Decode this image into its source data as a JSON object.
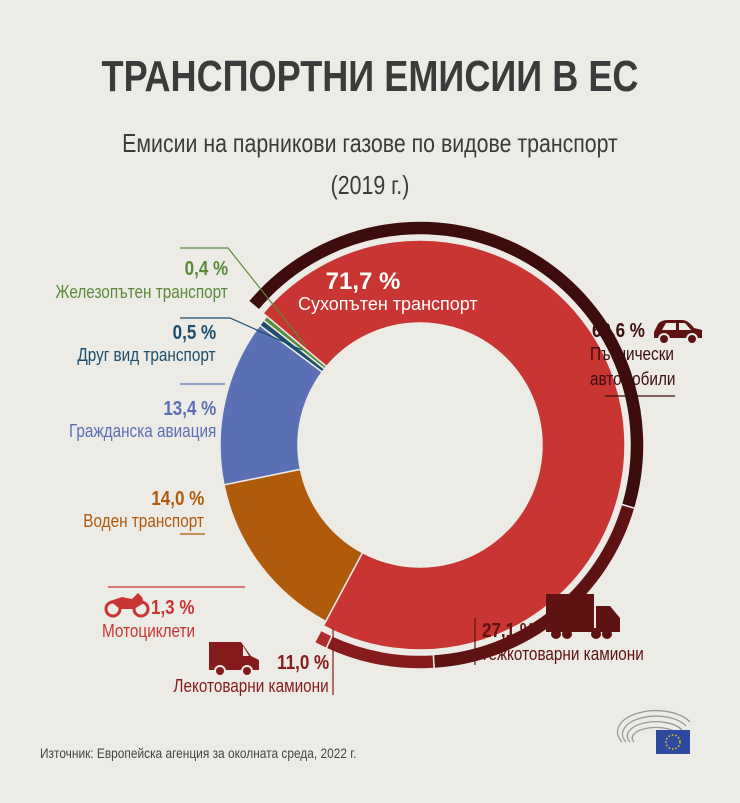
{
  "title": "ТРАНСПОРТНИ ЕМИСИИ В ЕС",
  "subtitle_line1": "Емисии на парникови газове по видове транспорт",
  "subtitle_line2": "(2019 г.)",
  "source": "Източник: Европейска агенция за околната среда, 2022 г.",
  "chart_data": {
    "type": "pie",
    "title": "Емисии на парникови газове по видове транспорт",
    "subtitle": "(2019 г.)",
    "donut": true,
    "inner_ring": [
      {
        "name": "Сухопътен транспорт",
        "value": 71.7,
        "label": "71,7 %",
        "color": "#c93533"
      },
      {
        "name": "Воден транспорт",
        "value": 14.0,
        "label": "14,0 %",
        "color": "#b05a0c"
      },
      {
        "name": "Гражданска авиация",
        "value": 13.4,
        "label": "13,4 %",
        "color": "#5b6fb5"
      },
      {
        "name": "Друг вид транспорт",
        "value": 0.5,
        "label": "0,5 %",
        "color": "#1d4e6b"
      },
      {
        "name": "Железопътен транспорт",
        "value": 0.4,
        "label": "0,4 %",
        "color": "#5a8a3a"
      }
    ],
    "outer_ring": [
      {
        "name": "Пътнически автомобили",
        "value": 60.6,
        "label": "60,6 %",
        "color": "#3d0c0c",
        "icon": "car-icon"
      },
      {
        "name": "Тежкотоварни камиони",
        "value": 27.1,
        "label": "27,1 %",
        "color": "#5e1212",
        "icon": "truck-icon"
      },
      {
        "name": "Лекотоварни камиони",
        "value": 11.0,
        "label": "11,0 %",
        "color": "#861b1b",
        "icon": "van-icon"
      },
      {
        "name": "Мотоциклети",
        "value": 1.3,
        "label": "1,3 %",
        "color": "#b02c2c",
        "icon": "motorcycle-icon"
      }
    ],
    "label_lines": {
      "cars_line1": "Пътнически",
      "cars_line2": "автомобили"
    }
  }
}
